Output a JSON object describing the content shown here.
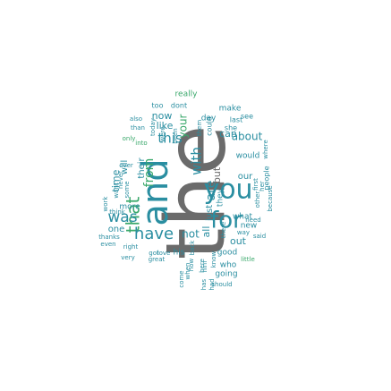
{
  "palette": {
    "grey": "#6b6b6b",
    "teal": "#2a8ea1",
    "green": "#3aa86b",
    "dark": "#555555"
  },
  "words": [
    {
      "text": "the",
      "color": "grey"
    },
    {
      "text": "and",
      "color": "teal"
    },
    {
      "text": "you",
      "color": "teal"
    },
    {
      "text": "for",
      "color": "teal"
    },
    {
      "text": "that",
      "color": "green"
    },
    {
      "text": "have",
      "color": "teal"
    },
    {
      "text": "was",
      "color": "teal"
    },
    {
      "text": "this",
      "color": "teal"
    },
    {
      "text": "with",
      "color": "teal"
    },
    {
      "text": "are",
      "color": "teal"
    },
    {
      "text": "from",
      "color": "green"
    },
    {
      "text": "but",
      "color": "grey"
    },
    {
      "text": "not",
      "color": "teal"
    },
    {
      "text": "all",
      "color": "teal"
    },
    {
      "text": "your",
      "color": "green"
    },
    {
      "text": "can",
      "color": "teal"
    },
    {
      "text": "about",
      "color": "teal"
    },
    {
      "text": "what",
      "color": "teal"
    },
    {
      "text": "new",
      "color": "teal"
    },
    {
      "text": "one",
      "color": "teal"
    },
    {
      "text": "time",
      "color": "teal"
    },
    {
      "text": "will",
      "color": "teal"
    },
    {
      "text": "their",
      "color": "teal"
    },
    {
      "text": "like",
      "color": "teal"
    },
    {
      "text": "now",
      "color": "teal"
    },
    {
      "text": "day",
      "color": "teal"
    },
    {
      "text": "out",
      "color": "teal"
    },
    {
      "text": "good",
      "color": "teal"
    },
    {
      "text": "just",
      "color": "teal"
    },
    {
      "text": "they",
      "color": "teal"
    },
    {
      "text": "would",
      "color": "teal"
    },
    {
      "text": "make",
      "color": "teal"
    },
    {
      "text": "really",
      "color": "green"
    },
    {
      "text": "too",
      "color": "teal"
    },
    {
      "text": "dont",
      "color": "teal"
    },
    {
      "text": "also",
      "color": "teal"
    },
    {
      "text": "than",
      "color": "teal"
    },
    {
      "text": "only",
      "color": "green"
    },
    {
      "text": "into",
      "color": "green"
    },
    {
      "text": "over",
      "color": "teal"
    },
    {
      "text": "more",
      "color": "teal"
    },
    {
      "text": "think",
      "color": "teal"
    },
    {
      "text": "thanks",
      "color": "teal"
    },
    {
      "text": "even",
      "color": "teal"
    },
    {
      "text": "right",
      "color": "teal"
    },
    {
      "text": "got",
      "color": "teal"
    },
    {
      "text": "love",
      "color": "teal"
    },
    {
      "text": "his",
      "color": "teal"
    },
    {
      "text": "very",
      "color": "teal"
    },
    {
      "text": "great",
      "color": "teal"
    },
    {
      "text": "who",
      "color": "teal"
    },
    {
      "text": "going",
      "color": "teal"
    },
    {
      "text": "little",
      "color": "green"
    },
    {
      "text": "should",
      "color": "teal"
    },
    {
      "text": "need",
      "color": "teal"
    },
    {
      "text": "our",
      "color": "teal"
    },
    {
      "text": "last",
      "color": "teal"
    },
    {
      "text": "she",
      "color": "teal"
    },
    {
      "text": "see",
      "color": "teal"
    },
    {
      "text": "people",
      "color": "teal"
    },
    {
      "text": "first",
      "color": "teal"
    },
    {
      "text": "her",
      "color": "teal"
    },
    {
      "text": "other",
      "color": "teal"
    },
    {
      "text": "where",
      "color": "teal"
    },
    {
      "text": "because",
      "color": "teal"
    },
    {
      "text": "said",
      "color": "teal"
    },
    {
      "text": "way",
      "color": "teal"
    },
    {
      "text": "here",
      "color": "teal"
    },
    {
      "text": "know",
      "color": "teal"
    },
    {
      "text": "back",
      "color": "teal"
    },
    {
      "text": "work",
      "color": "teal"
    },
    {
      "text": "want",
      "color": "teal"
    },
    {
      "text": "never",
      "color": "teal"
    },
    {
      "text": "today",
      "color": "teal"
    },
    {
      "text": "were",
      "color": "teal"
    },
    {
      "text": "been",
      "color": "teal"
    },
    {
      "text": "how",
      "color": "teal"
    },
    {
      "text": "them",
      "color": "teal"
    },
    {
      "text": "some",
      "color": "teal"
    },
    {
      "text": "could",
      "color": "teal"
    },
    {
      "text": "when",
      "color": "teal"
    },
    {
      "text": "has",
      "color": "teal"
    },
    {
      "text": "had",
      "color": "teal"
    },
    {
      "text": "come",
      "color": "teal"
    },
    {
      "text": "him",
      "color": "teal"
    },
    {
      "text": "there",
      "color": "teal"
    }
  ]
}
